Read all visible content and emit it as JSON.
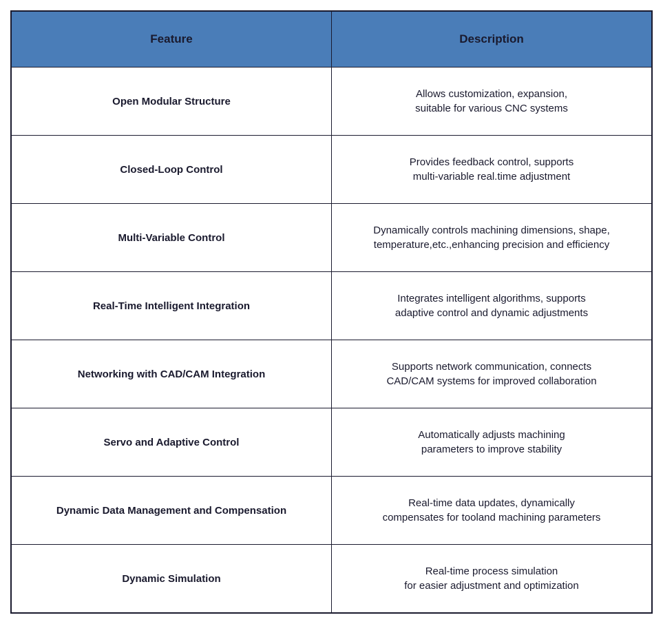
{
  "table": {
    "type": "table",
    "background_color": "#ffffff",
    "border_color": "#1a1a2e",
    "header_bg_color": "#4a7db8",
    "header_text_color": "#1a1a2e",
    "body_text_color": "#1a1a2e",
    "header_fontsize": 17,
    "body_fontsize": 15,
    "header_fontweight": "bold",
    "feature_fontweight": "bold",
    "columns": [
      "Feature",
      "Description"
    ],
    "column_widths": [
      "50%",
      "50%"
    ],
    "rows": [
      {
        "feature": "Open Modular Structure",
        "description_line1": "Allows customization, expansion,",
        "description_line2": "suitable for various CNC systems"
      },
      {
        "feature": "Closed-Loop Control",
        "description_line1": "Provides feedback control, supports",
        "description_line2": "multi-variable real.time adjustment"
      },
      {
        "feature": "Multi-Variable Control",
        "description_line1": "Dynamically controls machining dimensions, shape,",
        "description_line2": "temperature,etc.,enhancing precision and efficiency"
      },
      {
        "feature": "Real-Time Intelligent Integration",
        "description_line1": "Integrates intelligent algorithms, supports",
        "description_line2": "adaptive control and dynamic adjustments"
      },
      {
        "feature": "Networking with CAD/CAM Integration",
        "description_line1": "Supports network communication, connects",
        "description_line2": "CAD/CAM systems for improved collaboration"
      },
      {
        "feature": "Servo and Adaptive Control",
        "description_line1": "Automatically adjusts machining",
        "description_line2": "parameters to improve stability"
      },
      {
        "feature": "Dynamic Data Management and Compensation",
        "description_line1": "Real-time data updates, dynamically",
        "description_line2": "compensates for tooland machining parameters"
      },
      {
        "feature": "Dynamic Simulation",
        "description_line1": "Real-time process simulation",
        "description_line2": "for easier adjustment and optimization"
      }
    ]
  }
}
